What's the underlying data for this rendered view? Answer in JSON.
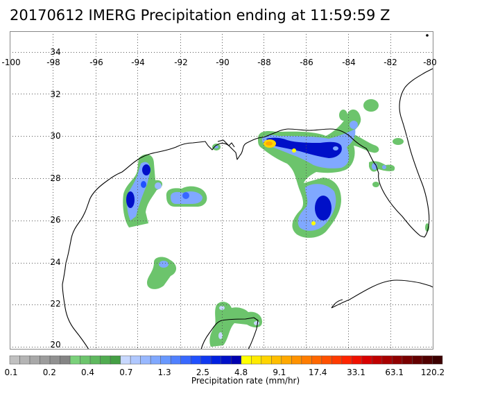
{
  "title": "20170612 IMERG Precipitation ending at 11:59:59 Z",
  "map": {
    "lon_ticks": [
      "-100",
      "-98",
      "-96",
      "-94",
      "-92",
      "-90",
      "-88",
      "-86",
      "-84",
      "-82",
      "-80"
    ],
    "lat_ticks": [
      "34",
      "32",
      "30",
      "28",
      "26",
      "24",
      "22",
      "20"
    ],
    "lon_range": [
      -100,
      -80
    ],
    "lat_range": [
      19.7,
      35.2
    ],
    "grid": "dotted"
  },
  "colorbar": {
    "label": "Precipitation rate (mm/hr)",
    "tick_labels": [
      "0.1",
      "0.2",
      "0.4",
      "0.7",
      "1.3",
      "2.5",
      "4.8",
      "9.1",
      "17.4",
      "33.1",
      "63.1",
      "120.2"
    ],
    "colors": [
      "#c0c0c0",
      "#b4b4b4",
      "#a8a8a8",
      "#9c9c9c",
      "#909090",
      "#848484",
      "#7ad07a",
      "#6cc46c",
      "#5eb85e",
      "#50ac50",
      "#449f44",
      "#c8d8ff",
      "#b0c8ff",
      "#98b8ff",
      "#80a8ff",
      "#6898ff",
      "#5080ff",
      "#3868ff",
      "#2050ff",
      "#1038f0",
      "#0020e0",
      "#0010c8",
      "#0000b0",
      "#ffff00",
      "#ffea00",
      "#ffd400",
      "#ffbe00",
      "#ffa800",
      "#ff9200",
      "#ff7c00",
      "#ff6600",
      "#ff5000",
      "#ff3a00",
      "#ff2400",
      "#f01000",
      "#d80000",
      "#c00000",
      "#a80000",
      "#900000",
      "#7a0000",
      "#640000",
      "#500000",
      "#3c0000"
    ]
  }
}
